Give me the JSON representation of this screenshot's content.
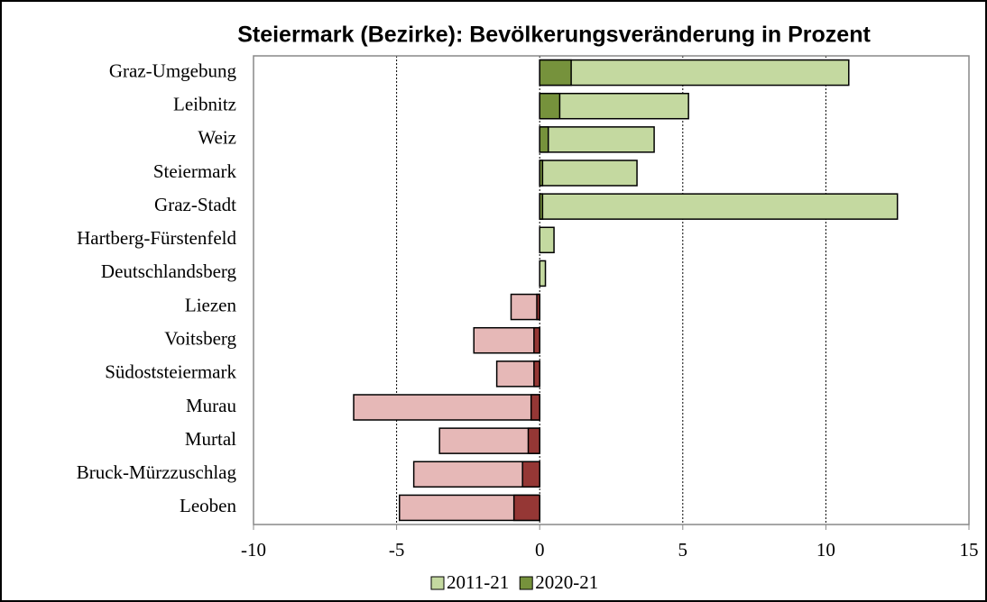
{
  "chart_data": {
    "type": "overlapping-hbar",
    "title": "Steiermark (Bezirke): Bevölkerungsveränderung in Prozent",
    "categories": [
      "Graz-Umgebung",
      "Leibnitz",
      "Weiz",
      "Steiermark",
      "Graz-Stadt",
      "Hartberg-Fürstenfeld",
      "Deutschlandsberg",
      "Liezen",
      "Voitsberg",
      "Südoststeiermark",
      "Murau",
      "Murtal",
      "Bruck-Mürzzuschlag",
      "Leoben"
    ],
    "series": [
      {
        "name": "2011-21",
        "color": "#c4d9a0",
        "negative_color": "#e6b8b7",
        "values": [
          10.8,
          5.2,
          4.0,
          3.4,
          12.5,
          0.5,
          0.2,
          -1.0,
          -2.3,
          -1.5,
          -6.5,
          -3.5,
          -4.4,
          -4.9
        ]
      },
      {
        "name": "2020-21",
        "color": "#76923c",
        "negative_color": "#953735",
        "values": [
          1.1,
          0.7,
          0.3,
          0.1,
          0.1,
          0.0,
          0.0,
          -0.1,
          -0.2,
          -0.2,
          -0.3,
          -0.4,
          -0.6,
          -0.9
        ]
      }
    ],
    "xlim": [
      -10,
      15
    ],
    "xticks": [
      -10,
      -5,
      0,
      5,
      10,
      15
    ],
    "grid": true,
    "legend": "bottom"
  }
}
